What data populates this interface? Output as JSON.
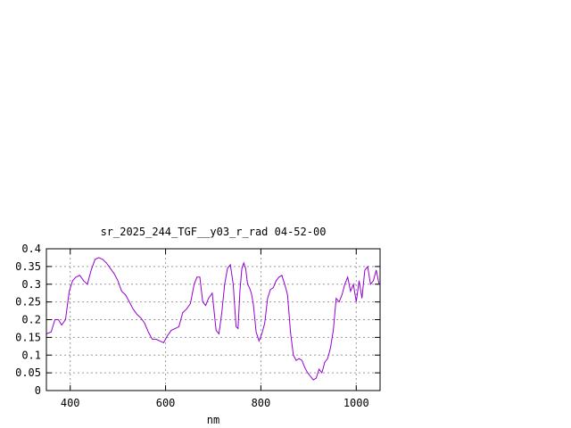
{
  "chart_data": {
    "type": "line",
    "title": "sr_2025_244_TGF__y03_r_rad 04-52-00",
    "xlabel": "nm",
    "ylabel": "",
    "xlim": [
      350,
      1050
    ],
    "ylim": [
      0,
      0.4
    ],
    "grid": true,
    "x_ticks": [
      400,
      600,
      800,
      1000
    ],
    "y_ticks": [
      0,
      0.05,
      0.1,
      0.15,
      0.2,
      0.25,
      0.3,
      0.35,
      0.4
    ],
    "x_tick_labels": [
      "400",
      "600",
      "800",
      "1000"
    ],
    "y_tick_labels": [
      "0",
      "0.05",
      "0.1",
      "0.15",
      "0.2",
      "0.25",
      "0.3",
      "0.35",
      "0.4"
    ],
    "line_color": "#9400d3",
    "series": [
      {
        "x": [
          350,
          360,
          368,
          375,
          382,
          390,
          398,
          405,
          412,
          420,
          428,
          436,
          444,
          452,
          460,
          468,
          476,
          484,
          492,
          500,
          508,
          516,
          524,
          532,
          540,
          548,
          556,
          564,
          572,
          580,
          588,
          596,
          604,
          612,
          620,
          628,
          636,
          644,
          652,
          660,
          666,
          672,
          678,
          684,
          690,
          698,
          706,
          712,
          718,
          724,
          730,
          736,
          742,
          748,
          752,
          756,
          760,
          764,
          768,
          772,
          776,
          780,
          784,
          790,
          796,
          802,
          808,
          814,
          820,
          826,
          832,
          838,
          844,
          850,
          856,
          862,
          868,
          874,
          880,
          886,
          892,
          898,
          904,
          910,
          916,
          922,
          928,
          934,
          940,
          946,
          952,
          958,
          964,
          970,
          976,
          982,
          988,
          994,
          1000,
          1006,
          1012,
          1018,
          1024,
          1030,
          1036,
          1042,
          1048
        ],
        "y": [
          0.16,
          0.165,
          0.2,
          0.2,
          0.185,
          0.2,
          0.28,
          0.31,
          0.32,
          0.325,
          0.31,
          0.3,
          0.34,
          0.37,
          0.375,
          0.37,
          0.36,
          0.345,
          0.33,
          0.31,
          0.28,
          0.27,
          0.25,
          0.23,
          0.215,
          0.205,
          0.19,
          0.165,
          0.145,
          0.145,
          0.14,
          0.135,
          0.155,
          0.17,
          0.175,
          0.18,
          0.22,
          0.23,
          0.245,
          0.3,
          0.32,
          0.32,
          0.25,
          0.24,
          0.26,
          0.275,
          0.17,
          0.16,
          0.22,
          0.3,
          0.345,
          0.355,
          0.3,
          0.18,
          0.175,
          0.28,
          0.345,
          0.36,
          0.345,
          0.3,
          0.29,
          0.275,
          0.245,
          0.165,
          0.14,
          0.16,
          0.19,
          0.26,
          0.285,
          0.29,
          0.31,
          0.32,
          0.325,
          0.3,
          0.27,
          0.165,
          0.1,
          0.085,
          0.09,
          0.085,
          0.065,
          0.05,
          0.04,
          0.03,
          0.035,
          0.06,
          0.05,
          0.08,
          0.09,
          0.12,
          0.17,
          0.26,
          0.25,
          0.27,
          0.3,
          0.32,
          0.28,
          0.3,
          0.25,
          0.31,
          0.26,
          0.34,
          0.35,
          0.3,
          0.31,
          0.34,
          0.3
        ]
      }
    ]
  }
}
